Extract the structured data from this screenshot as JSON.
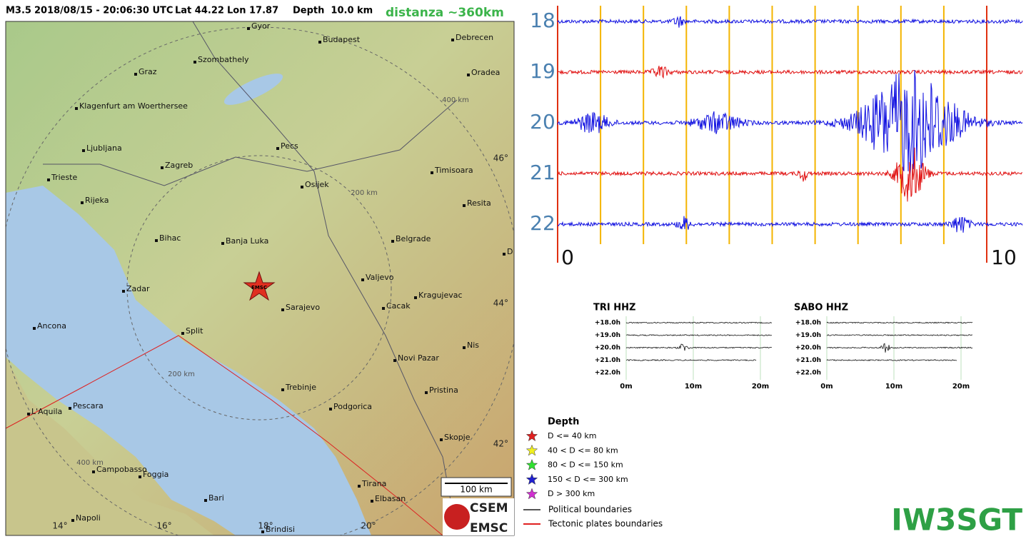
{
  "header": {
    "magnitude": "M3.5",
    "datetime": "2018/08/15 - 20:06:30 UTC",
    "lat": "Lat 44.22",
    "lon": "Lon 17.87",
    "depth": "Depth  10.0 km",
    "distance": "distanza ~360km"
  },
  "map": {
    "cities": [
      "Gyor",
      "Budapest",
      "Debrecen",
      "Graz",
      "Szombathely",
      "Oradea",
      "Klagenfurt am Woerthersee",
      "Pecs",
      "Ljubljana",
      "Zagreb",
      "Timisoara",
      "Trieste",
      "Osijek",
      "Rijeka",
      "Resita",
      "Bihac",
      "Banja Luka",
      "Belgrade",
      "Valjevo",
      "Zadar",
      "Kragujevac",
      "Cacak",
      "Sarajevo",
      "Ancona",
      "Split",
      "Nis",
      "Novi Pazar",
      "Trebinje",
      "Pristina",
      "Podgorica",
      "Pescara",
      "L'Aquila",
      "Skopje",
      "Campobasso",
      "Foggia",
      "Tirana",
      "Elbasan",
      "Bari",
      "Napoli",
      "Brindisi",
      "Dr"
    ],
    "lat_labels": [
      "46°",
      "44°",
      "42°"
    ],
    "lon_labels": [
      "14°",
      "16°",
      "18°",
      "20°"
    ],
    "ring_labels": [
      "400 km",
      "200 km",
      "200 km",
      "400 km"
    ],
    "epicenter_label": "EMSC",
    "scale": "100 km"
  },
  "seismogram": {
    "rows": [
      18,
      19,
      20,
      21,
      22
    ],
    "xlim": [
      0,
      10
    ],
    "xticks": [
      0,
      10
    ]
  },
  "helicorders": [
    {
      "title": "TRI HHZ",
      "rows": [
        "+18.0h",
        "+19.0h",
        "+20.0h",
        "+21.0h",
        "+22.0h"
      ],
      "xticks": [
        "0m",
        "10m",
        "20m"
      ]
    },
    {
      "title": "SABO HHZ",
      "rows": [
        "+18.0h",
        "+19.0h",
        "+20.0h",
        "+21.0h",
        "+22.0h"
      ],
      "xticks": [
        "0m",
        "10m",
        "20m"
      ]
    }
  ],
  "legend": {
    "title": "Depth",
    "depth_classes": [
      {
        "label": "D <= 40 km",
        "color": "#e02020"
      },
      {
        "label": "40 < D <= 80 km",
        "color": "#f0f020"
      },
      {
        "label": "80 < D <= 150 km",
        "color": "#30e030"
      },
      {
        "label": "150 < D <= 300 km",
        "color": "#2020d0"
      },
      {
        "label": "D > 300 km",
        "color": "#d030d0"
      }
    ],
    "lines": [
      {
        "label": "Political boundaries",
        "color": "#555555"
      },
      {
        "label": "Tectonic plates boundaries",
        "color": "#e02020"
      }
    ]
  },
  "logo": {
    "top": "CSEM",
    "bottom": "EMSC"
  },
  "callsign": "IW3SGT"
}
